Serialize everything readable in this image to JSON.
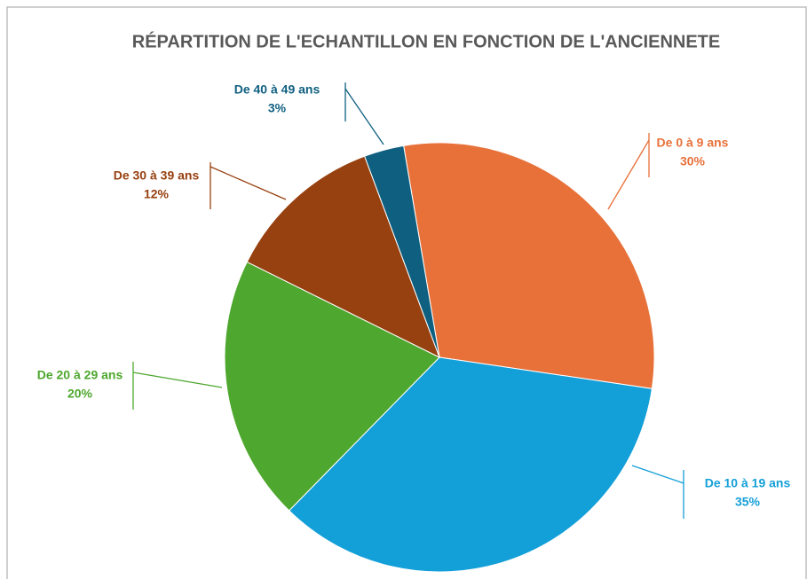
{
  "chart_data": {
    "type": "pie",
    "title": "RÉPARTITION DE L'ECHANTILLON EN FONCTION DE L'ANCIENNETE",
    "categories": [
      "De 0 à 9 ans",
      "De 10 à 19 ans",
      "De 20 à 29 ans",
      "De 30 à 39 ans",
      "De 40 à 49 ans"
    ],
    "values": [
      30,
      35,
      20,
      12,
      3
    ],
    "value_labels": [
      "30%",
      "35%",
      "20%",
      "12%",
      "3%"
    ],
    "colors": [
      "#e8713a",
      "#139fd8",
      "#4ea72e",
      "#974010",
      "#0f5f80"
    ]
  }
}
